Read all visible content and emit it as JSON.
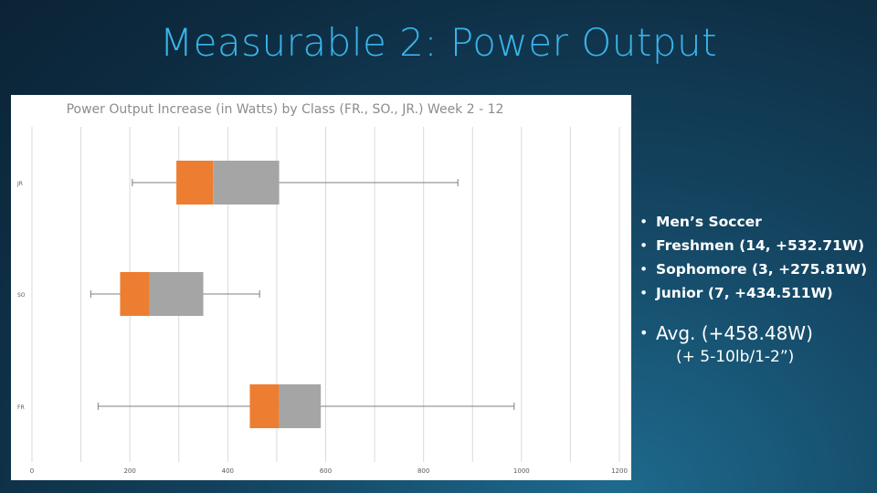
{
  "slide": {
    "title": "Measurable 2: Power Output"
  },
  "bullets": {
    "items": [
      "Men’s Soccer",
      "Freshmen (14, +532.71W)",
      "Sophomore (3, +275.81W)",
      "Junior (7, +434.511W)"
    ],
    "avg": "Avg. (+458.48W)",
    "avg_sub": "(+ 5-10lb/1-2”)"
  },
  "colors": {
    "q1": "#ed7d31",
    "q2": "#a5a5a5",
    "whisker": "#7f7f7f",
    "grid": "#d9d9d9",
    "title_text": "#3ab4ea"
  },
  "chart_data": {
    "type": "box",
    "orientation": "horizontal",
    "title": "Power Output Increase (in Watts) by Class (FR., SO., JR.) Week 2 - 12",
    "xlim": [
      0,
      1200
    ],
    "xticks": [
      0,
      200,
      400,
      600,
      800,
      1000,
      1200
    ],
    "grid": true,
    "categories": [
      "JR",
      "SO",
      "FR"
    ],
    "boxes": [
      {
        "category": "JR",
        "min": 205,
        "q1": 295,
        "median": 370,
        "q3": 505,
        "max": 870
      },
      {
        "category": "SO",
        "min": 120,
        "q1": 180,
        "median": 240,
        "q3": 350,
        "max": 465
      },
      {
        "category": "FR",
        "min": 135,
        "q1": 445,
        "median": 505,
        "q3": 590,
        "max": 985
      }
    ]
  }
}
